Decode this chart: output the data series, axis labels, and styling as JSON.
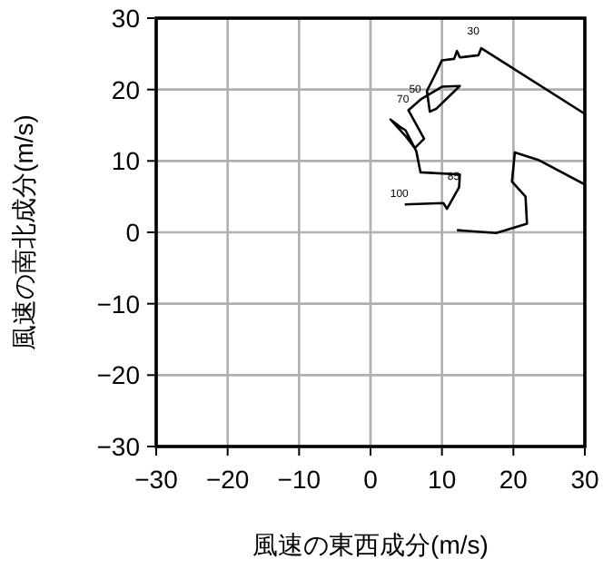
{
  "chart_data": {
    "type": "line",
    "xlabel": "風速の東西成分(m/s)",
    "ylabel": "風速の南北成分(m/s)",
    "xlim": [
      -30,
      30
    ],
    "ylim": [
      -30,
      30
    ],
    "xticks": [
      -30,
      -20,
      -10,
      0,
      10,
      20,
      30
    ],
    "yticks": [
      -30,
      -20,
      -10,
      0,
      10,
      20,
      30
    ],
    "grid": true,
    "series": [
      {
        "color": "#000000",
        "x": [
          4.8,
          10.2,
          10.7,
          12.4,
          12.5,
          7,
          6.4,
          4.9,
          4.1,
          2.8,
          4.9,
          6.2,
          7.5,
          5.3,
          7,
          10,
          12.5,
          9.2,
          8.3,
          7.9,
          9.2,
          10,
          11.7,
          12.1,
          12.5,
          15.1,
          15.5,
          30,
          null,
          30,
          23.6,
          20.2,
          19.8,
          21.7,
          21.9,
          17.6,
          12.1
        ],
        "values": [
          3.9,
          4.1,
          3.3,
          6.3,
          8.1,
          8.4,
          11.4,
          14.3,
          14.8,
          15.8,
          13.5,
          11.8,
          13.1,
          17.1,
          18.6,
          20.4,
          20.5,
          17.3,
          16.9,
          19.8,
          22.4,
          24.1,
          24.3,
          25.4,
          24.5,
          24.8,
          25.8,
          16.6,
          null,
          6.7,
          10.1,
          11.2,
          7.1,
          5.0,
          1.2,
          -0.1,
          0.3
        ]
      }
    ],
    "annotations": [
      "30",
      {
        "text": "50",
        "x": 7,
        "y": 18.6
      },
      {
        "text": "70",
        "x": 5.3,
        "y": 17.1
      },
      {
        "text": "85",
        "x": 12.4,
        "y": 6.3
      },
      {
        "text": "100",
        "x": 4.8,
        "y": 3.9
      }
    ]
  }
}
